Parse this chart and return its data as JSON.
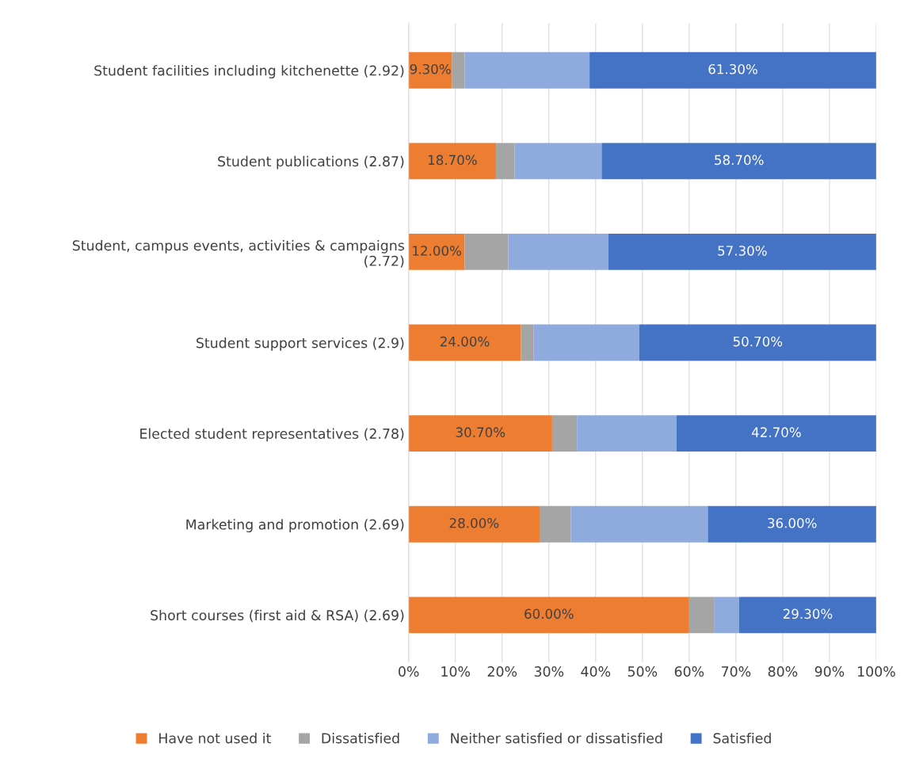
{
  "chart_data": {
    "type": "bar",
    "orientation": "horizontal",
    "stacked": true,
    "categories": [
      "Student facilities including kitchenette (2.92)",
      "Student publications (2.87)",
      "Student, campus events, activities & campaigns\n(2.72)",
      "Student support services (2.9)",
      "Elected student representatives (2.78)",
      "Marketing and promotion (2.69)",
      "Short courses (first aid & RSA) (2.69)"
    ],
    "series": [
      {
        "name": "Have not used it",
        "color": "#ed7d31",
        "values": [
          9.3,
          18.7,
          12.0,
          24.0,
          30.7,
          28.0,
          60.0
        ],
        "value_labels": [
          "9.30%",
          "18.70%",
          "12.00%",
          "24.00%",
          "30.70%",
          "28.00%",
          "60.00%"
        ]
      },
      {
        "name": "Dissatisfied",
        "color": "#a5a5a5",
        "values": [
          2.7,
          4.0,
          9.3,
          2.7,
          5.3,
          6.7,
          5.3
        ]
      },
      {
        "name": "Neither satisfied or dissatisfied",
        "color": "#8faadc",
        "values": [
          26.7,
          18.6,
          21.4,
          22.6,
          21.3,
          29.3,
          5.4
        ]
      },
      {
        "name": "Satisfied",
        "color": "#4472c4",
        "values": [
          61.3,
          58.7,
          57.3,
          50.7,
          42.7,
          36.0,
          29.3
        ],
        "value_labels": [
          "61.30%",
          "58.70%",
          "57.30%",
          "50.70%",
          "42.70%",
          "36.00%",
          "29.30%"
        ]
      }
    ],
    "xlim": [
      0,
      100
    ],
    "xticks": [
      {
        "value": 0,
        "label": "0%"
      },
      {
        "value": 10,
        "label": "10%"
      },
      {
        "value": 20,
        "label": "20%"
      },
      {
        "value": 30,
        "label": "30%"
      },
      {
        "value": 40,
        "label": "40%"
      },
      {
        "value": 50,
        "label": "50%"
      },
      {
        "value": 60,
        "label": "60%"
      },
      {
        "value": 70,
        "label": "70%"
      },
      {
        "value": 80,
        "label": "80%"
      },
      {
        "value": 90,
        "label": "90%"
      },
      {
        "value": 100,
        "label": "100%"
      }
    ],
    "grid": "x",
    "legend": "bottom"
  }
}
